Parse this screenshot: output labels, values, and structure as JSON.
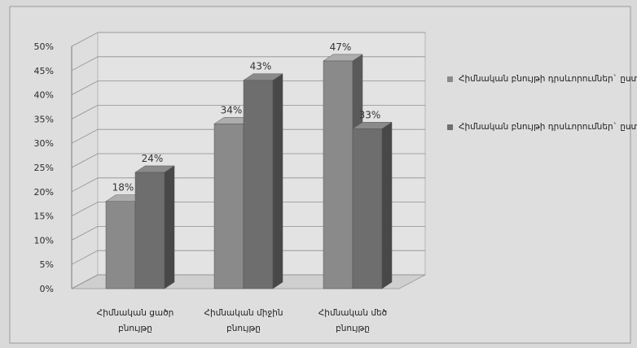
{
  "chart_data": {
    "type": "bar",
    "categories": [
      "Հիմնական ցածր բնույթը",
      "Հիմնական միջին բնույթը",
      "Հիմնական մեծ բնույթը"
    ],
    "series": [
      {
        "name": "Հիմնական բնույթի դրսևորումներ` ըստ վարքի",
        "values": [
          18,
          34,
          47
        ],
        "labels": [
          "18%",
          "34%",
          "47%"
        ]
      },
      {
        "name": "Հիմնական բնույթի դրսևորումներ` ըստ նախապատման",
        "values": [
          24,
          43,
          33
        ],
        "labels": [
          "24%",
          "43%",
          "33%"
        ]
      }
    ],
    "y_ticks": [
      "0%",
      "5%",
      "10%",
      "15%",
      "20%",
      "25%",
      "30%",
      "35%",
      "40%",
      "45%",
      "50%"
    ],
    "ylim": [
      0,
      50
    ],
    "grid": true,
    "legend_position": "right",
    "title": "",
    "xlabel": "",
    "ylabel": "",
    "colors": {
      "series1": "#8a8a8a",
      "series2": "#6e6e6e",
      "background": "#d9d9d9",
      "plot_area": "#e3e3e3"
    }
  }
}
